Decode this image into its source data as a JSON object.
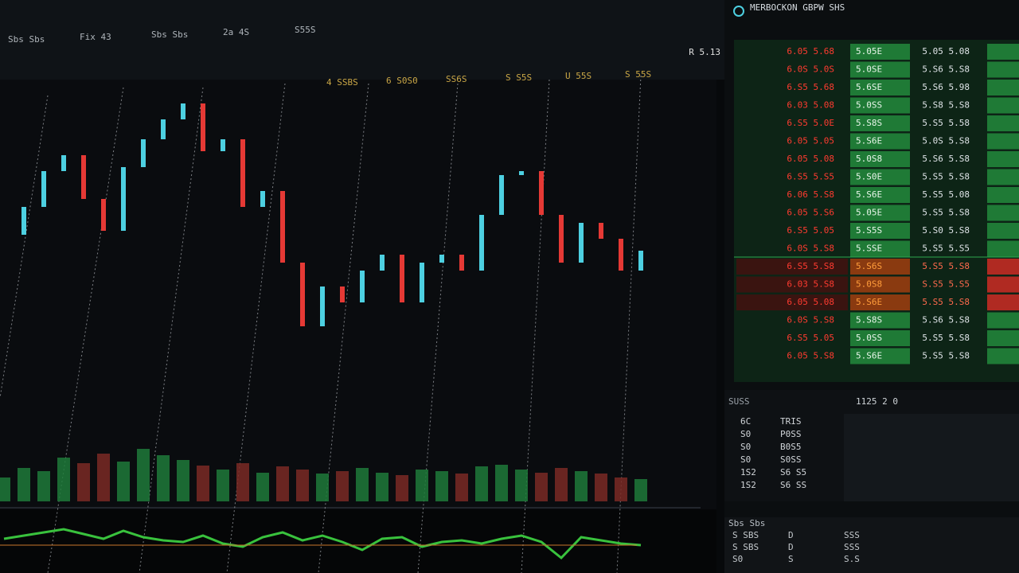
{
  "header": {
    "title": "MERBOCKON GBPW SHS",
    "symbol": "R 5.13"
  },
  "toolbar": [
    "Sbs Sbs",
    "Fix 43",
    "Sbs Sbs",
    "2a 4S",
    "S55S"
  ],
  "chart_tabs": [
    "4 SSBS",
    "6 S0S0",
    "SS6S",
    "S S5S",
    "U 55S",
    "S 55S"
  ],
  "chart_data": {
    "type": "candlestick",
    "values": [
      42.5,
      46,
      50.5,
      52.5,
      47,
      43,
      51,
      54.5,
      57,
      59,
      53,
      54.5,
      46,
      48,
      39,
      31,
      36,
      34,
      38,
      40,
      34,
      39,
      40,
      38,
      45,
      50,
      50.5,
      45,
      39,
      44,
      42,
      38,
      40.5
    ],
    "volume": [
      30,
      42,
      38,
      55,
      48,
      60,
      50,
      66,
      58,
      52,
      45,
      40,
      48,
      36,
      44,
      40,
      35,
      38,
      42,
      36,
      33,
      40,
      38,
      35,
      44,
      46,
      40,
      36,
      42,
      38,
      35,
      30,
      28
    ],
    "oscillator": [
      4,
      6,
      8,
      10,
      7,
      4,
      9,
      5,
      3,
      2,
      6,
      1,
      -1,
      5,
      8,
      3,
      6,
      2,
      -3,
      4,
      5,
      -1,
      2,
      3,
      1,
      4,
      6,
      2,
      -8,
      5,
      3,
      1,
      0
    ]
  },
  "order_book": {
    "rows": [
      [
        "6.05 5.68",
        "5.05E",
        "5.05 5.08"
      ],
      [
        "6.0S 5.0S",
        "5.0SE",
        "5.S6 5.S8"
      ],
      [
        "6.S5 5.68",
        "5.6SE",
        "5.S6 5.98"
      ],
      [
        "6.03 5.08",
        "5.0SS",
        "5.S8 5.S8"
      ],
      [
        "6.S5 5.0E",
        "5.S8S",
        "5.S5 5.58"
      ],
      [
        "6.05 5.05",
        "5.S6E",
        "5.0S 5.S8"
      ],
      [
        "6.05 5.08",
        "5.0S8",
        "5.S6 5.S8"
      ],
      [
        "6.S5 5.S5",
        "5.S0E",
        "5.S5 5.S8"
      ],
      [
        "6.06 5.S8",
        "5.S6E",
        "5.S5 5.08"
      ],
      [
        "6.05 5.S6",
        "5.05E",
        "5.S5 5.S8"
      ],
      [
        "6.S5 5.05",
        "5.S5S",
        "5.S0 5.S8"
      ],
      [
        "6.0S 5.S8",
        "5.SSE",
        "5.S5 5.S5"
      ],
      [
        "6.S5 5.S8",
        "5.S6S",
        "5.S5 5.S8"
      ],
      [
        "6.03 5.S8",
        "5.0S8",
        "S.S5 5.S5"
      ],
      [
        "6.05 5.08",
        "5.S6E",
        "5.S5 5.S8"
      ],
      [
        "6.0S 5.S8",
        "5.S8S",
        "5.S6 5.S8"
      ],
      [
        "6.S5 5.05",
        "5.0SS",
        "5.S5 5.S8"
      ],
      [
        "6.05 5.S8",
        "5.S6E",
        "5.S5 5.S8"
      ]
    ]
  },
  "trades": {
    "header": "1125 2 0",
    "label": "SUSS",
    "rows": [
      [
        "6C",
        "TRIS"
      ],
      [
        "S0",
        "P0SS"
      ],
      [
        "S0",
        "B0S5"
      ],
      [
        "S0",
        "S0SS"
      ],
      [
        "1S2",
        "S6 S5"
      ],
      [
        "1S2",
        "S6 SS"
      ]
    ]
  },
  "footer": {
    "label": "Sbs Sbs",
    "rows": [
      [
        "S SBS",
        "D",
        "SSS"
      ],
      [
        "S SBS",
        "D",
        "SSS"
      ],
      [
        "S0",
        "S",
        "S.S"
      ]
    ]
  }
}
